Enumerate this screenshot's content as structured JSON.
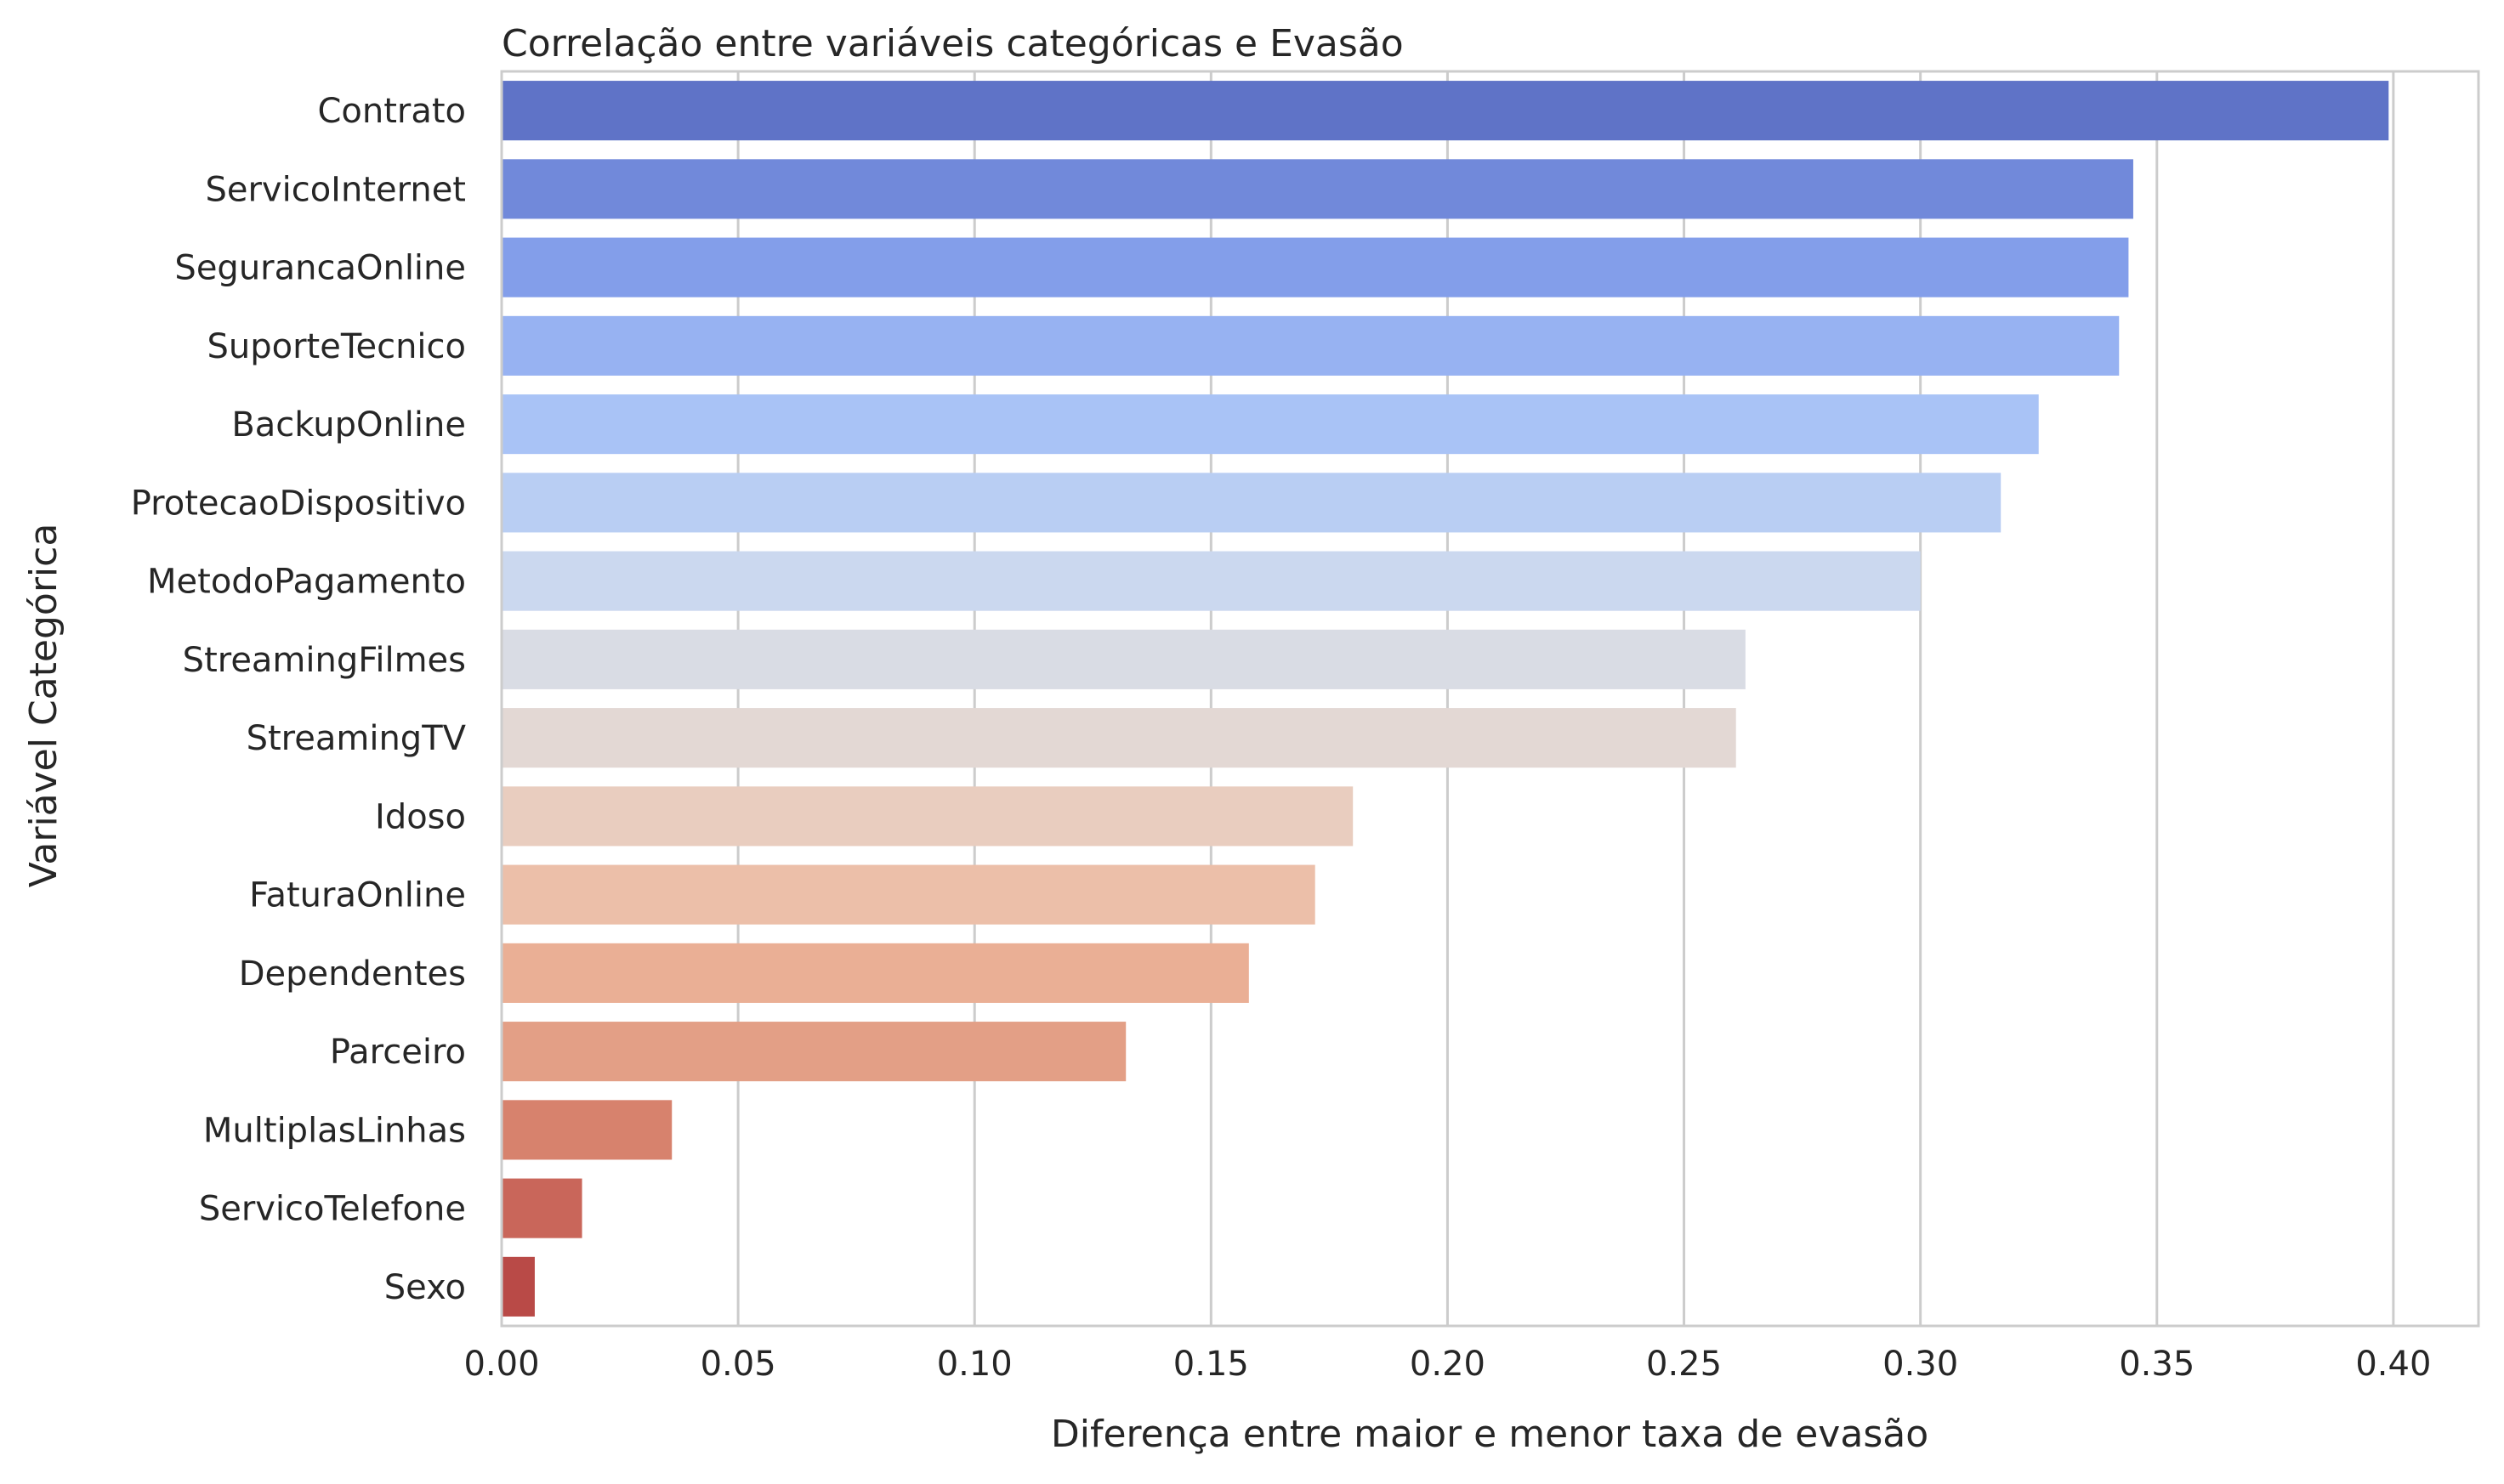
{
  "chart_data": {
    "type": "bar",
    "orientation": "horizontal",
    "title": "Correlação entre variáveis categóricas e Evasão",
    "xlabel": "Diferença entre maior e menor taxa de evasão",
    "ylabel": "Variável Categórica",
    "xlim": [
      0,
      0.418
    ],
    "x_ticks": [
      0.0,
      0.05,
      0.1,
      0.15,
      0.2,
      0.25,
      0.3,
      0.35,
      0.4
    ],
    "x_tick_labels": [
      "0.00",
      "0.05",
      "0.10",
      "0.15",
      "0.20",
      "0.25",
      "0.30",
      "0.35",
      "0.40"
    ],
    "grid": "vertical",
    "categories": [
      "Contrato",
      "ServicoInternet",
      "SegurancaOnline",
      "SuporteTecnico",
      "BackupOnline",
      "ProtecaoDispositivo",
      "MetodoPagamento",
      "StreamingFilmes",
      "StreamingTV",
      "Idoso",
      "FaturaOnline",
      "Dependentes",
      "Parceiro",
      "MultiplasLinhas",
      "ServicoTelefone",
      "Sexo"
    ],
    "values": [
      0.399,
      0.345,
      0.344,
      0.342,
      0.325,
      0.317,
      0.3,
      0.263,
      0.261,
      0.18,
      0.172,
      0.158,
      0.132,
      0.036,
      0.017,
      0.007
    ],
    "colors": [
      "#5f73c7",
      "#7189da",
      "#839eea",
      "#97b2f2",
      "#a9c3f6",
      "#b9cef3",
      "#cbd8ef",
      "#d9dce4",
      "#e3d8d4",
      "#e9cdbf",
      "#ecbfa9",
      "#eaaf95",
      "#e39f86",
      "#d7826d",
      "#c9665a",
      "#b94a47"
    ]
  }
}
